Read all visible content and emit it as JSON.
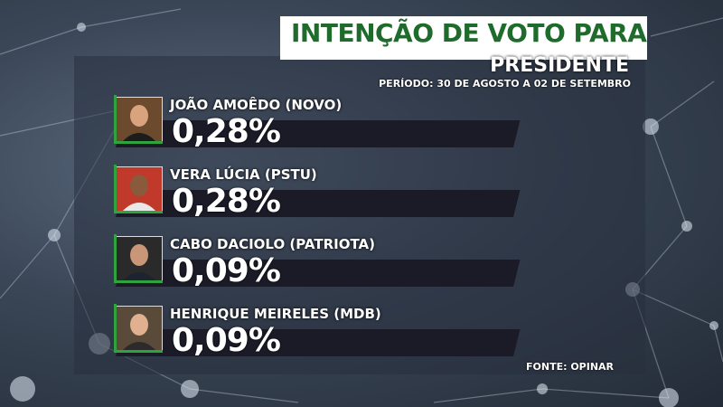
{
  "header": {
    "title": "INTENÇÃO DE VOTO PARA",
    "subtitle": "PRESIDENTE",
    "period": "PERÍODO: 30 DE AGOSTO A 02 DE SETEMBRO"
  },
  "source": "FONTE: OPINAR",
  "colors": {
    "title_green": "#1e6b2c",
    "accent_green": "#2fa43e",
    "bar_dark": "#1b1b28"
  },
  "chart_data": {
    "type": "bar",
    "title": "INTENÇÃO DE VOTO PARA PRESIDENTE",
    "subtitle": "PERÍODO: 30 DE AGOSTO A 02 DE SETEMBRO",
    "categories": [
      "JOÃO AMOÊDO (NOVO)",
      "VERA LÚCIA (PSTU)",
      "CABO DACIOLO (PATRIOTA)",
      "HENRIQUE MEIRELES (MDB)"
    ],
    "values": [
      0.28,
      0.28,
      0.09,
      0.09
    ],
    "labels": [
      "0,28%",
      "0,28%",
      "0,09%",
      "0,09%"
    ],
    "unit": "%"
  },
  "candidates": [
    {
      "name": "JOÃO AMOÊDO (NOVO)",
      "value": "0,28%",
      "photo_icon": "candidate-photo"
    },
    {
      "name": "VERA LÚCIA (PSTU)",
      "value": "0,28%",
      "photo_icon": "candidate-photo"
    },
    {
      "name": "CABO DACIOLO (PATRIOTA)",
      "value": "0,09%",
      "photo_icon": "candidate-photo"
    },
    {
      "name": "HENRIQUE MEIRELES (MDB)",
      "value": "0,09%",
      "photo_icon": "candidate-photo"
    }
  ]
}
